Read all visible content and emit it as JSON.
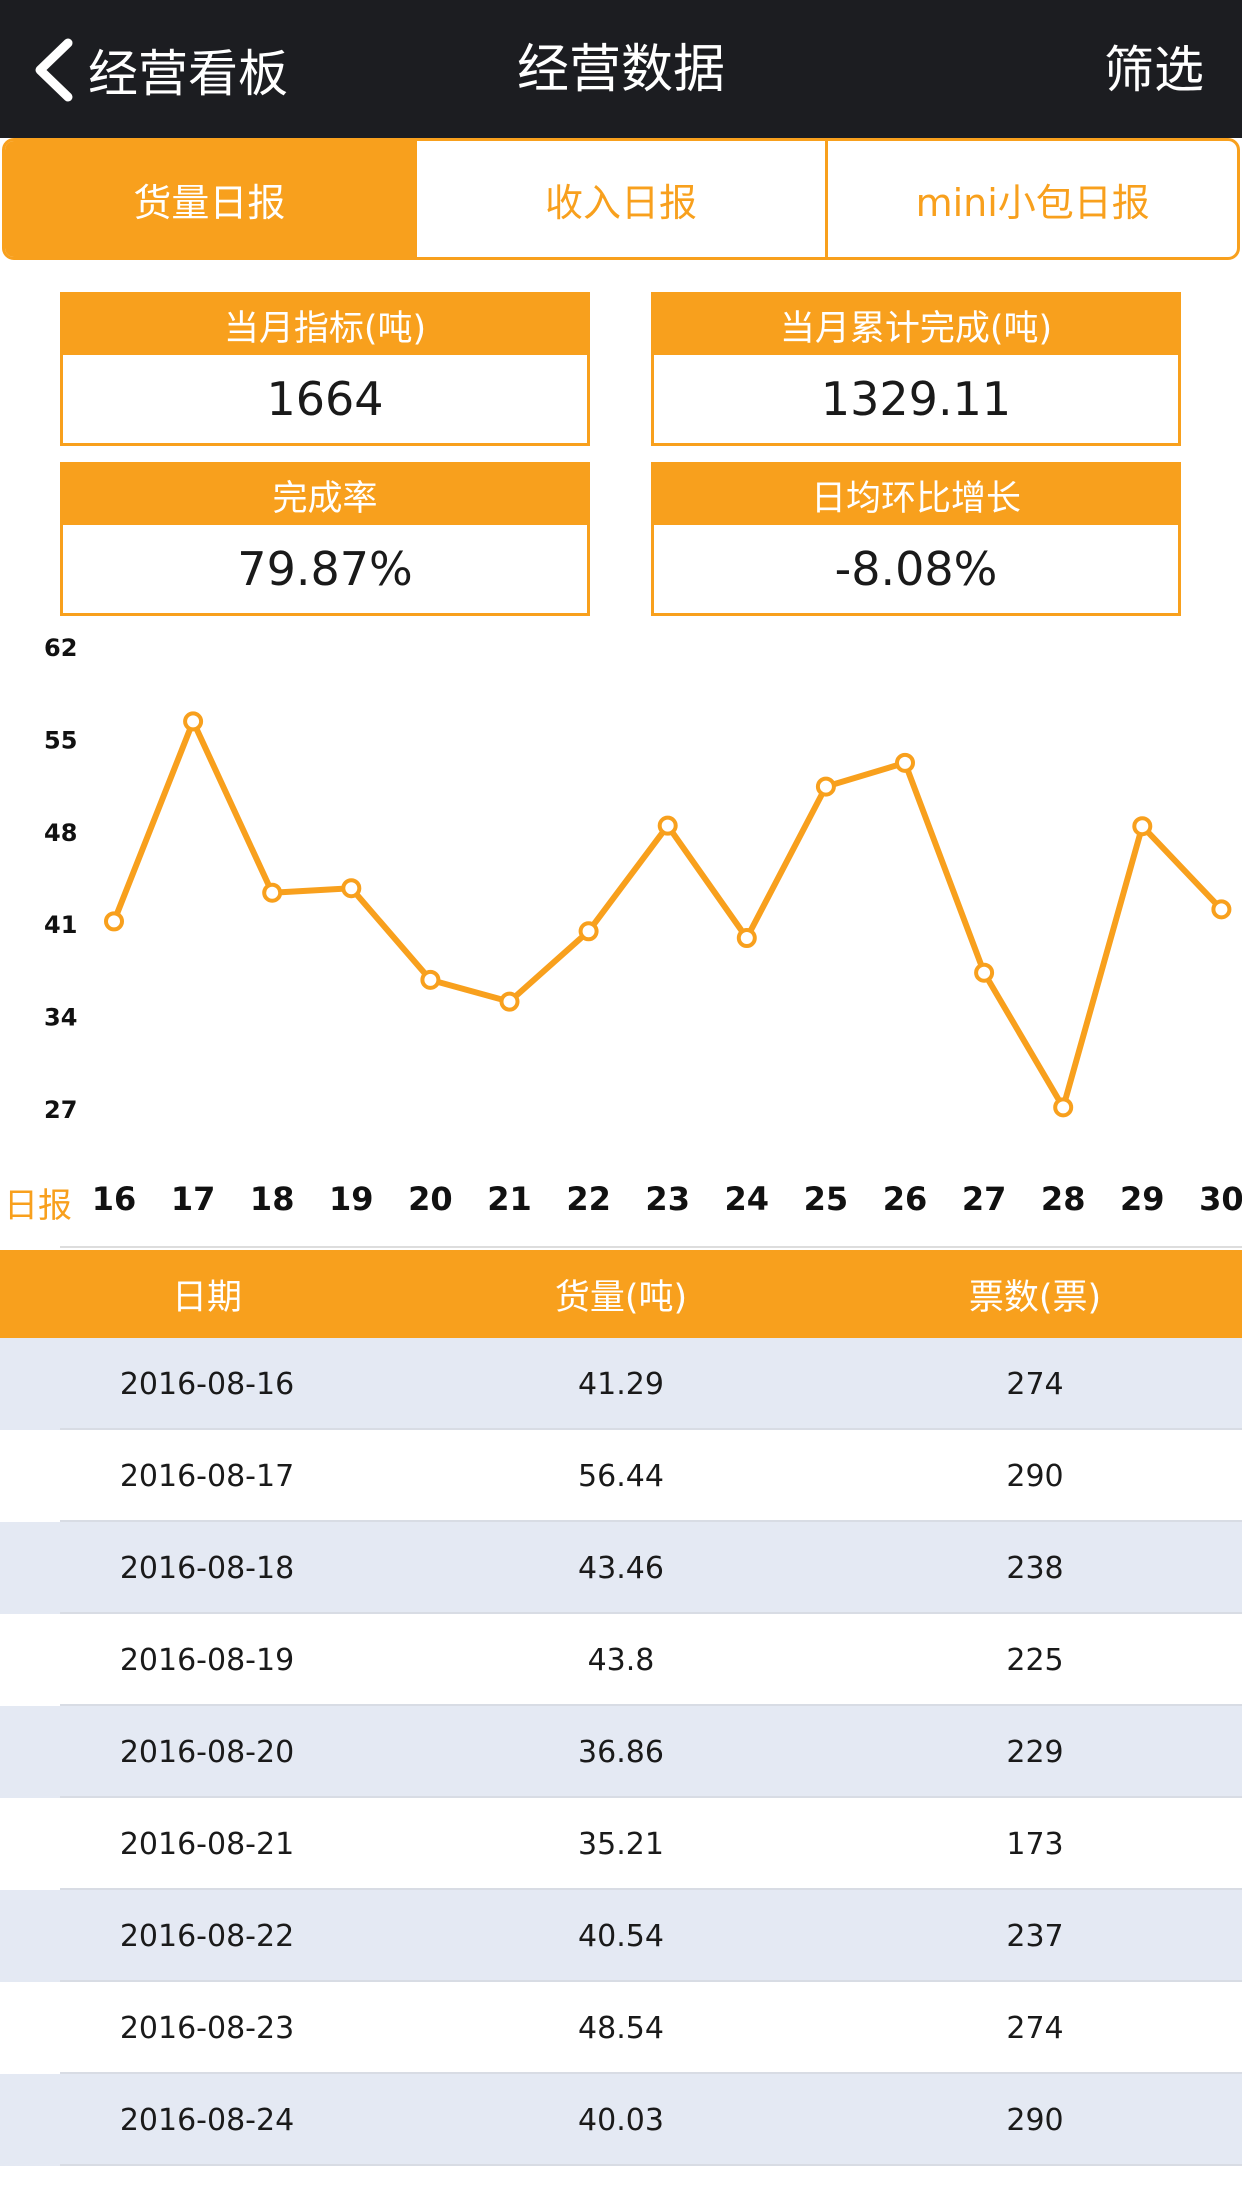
{
  "nav": {
    "back_label": "经营看板",
    "title": "经营数据",
    "filter_label": "筛选"
  },
  "tabs": [
    {
      "label": "货量日报",
      "active": true
    },
    {
      "label": "收入日报",
      "active": false
    },
    {
      "label": "mini小包日报",
      "active": false
    }
  ],
  "stats": {
    "monthly_target": {
      "label": "当月指标(吨)",
      "value": "1664"
    },
    "monthly_done": {
      "label": "当月累计完成(吨)",
      "value": "1329.11"
    },
    "completion_rate": {
      "label": "完成率",
      "value": "79.87%"
    },
    "daily_growth": {
      "label": "日均环比增长",
      "value": "-8.08%"
    }
  },
  "colors": {
    "accent": "#f8a01d",
    "navbar": "#1c1d21",
    "row_alt": "#e4e9f3"
  },
  "chart_data": {
    "type": "line",
    "title": "",
    "xlabel": "日报",
    "ylabel": "",
    "categories": [
      "16",
      "17",
      "18",
      "19",
      "20",
      "21",
      "22",
      "23",
      "24",
      "25",
      "26",
      "27",
      "28",
      "29",
      "30"
    ],
    "series": [
      {
        "name": "货量(吨)",
        "values": [
          41.29,
          56.44,
          43.46,
          43.8,
          36.86,
          35.21,
          40.54,
          48.54,
          40.03,
          51.5,
          53.3,
          37.4,
          27.2,
          48.5,
          42.2
        ]
      }
    ],
    "yticks": [
      "62",
      "55",
      "48",
      "41",
      "34",
      "27"
    ],
    "ylim": [
      27,
      62
    ]
  },
  "table": {
    "headers": [
      "日期",
      "货量(吨)",
      "票数(票)"
    ],
    "rows": [
      [
        "2016-08-16",
        "41.29",
        "274"
      ],
      [
        "2016-08-17",
        "56.44",
        "290"
      ],
      [
        "2016-08-18",
        "43.46",
        "238"
      ],
      [
        "2016-08-19",
        "43.8",
        "225"
      ],
      [
        "2016-08-20",
        "36.86",
        "229"
      ],
      [
        "2016-08-21",
        "35.21",
        "173"
      ],
      [
        "2016-08-22",
        "40.54",
        "237"
      ],
      [
        "2016-08-23",
        "48.54",
        "274"
      ],
      [
        "2016-08-24",
        "40.03",
        "290"
      ]
    ]
  }
}
